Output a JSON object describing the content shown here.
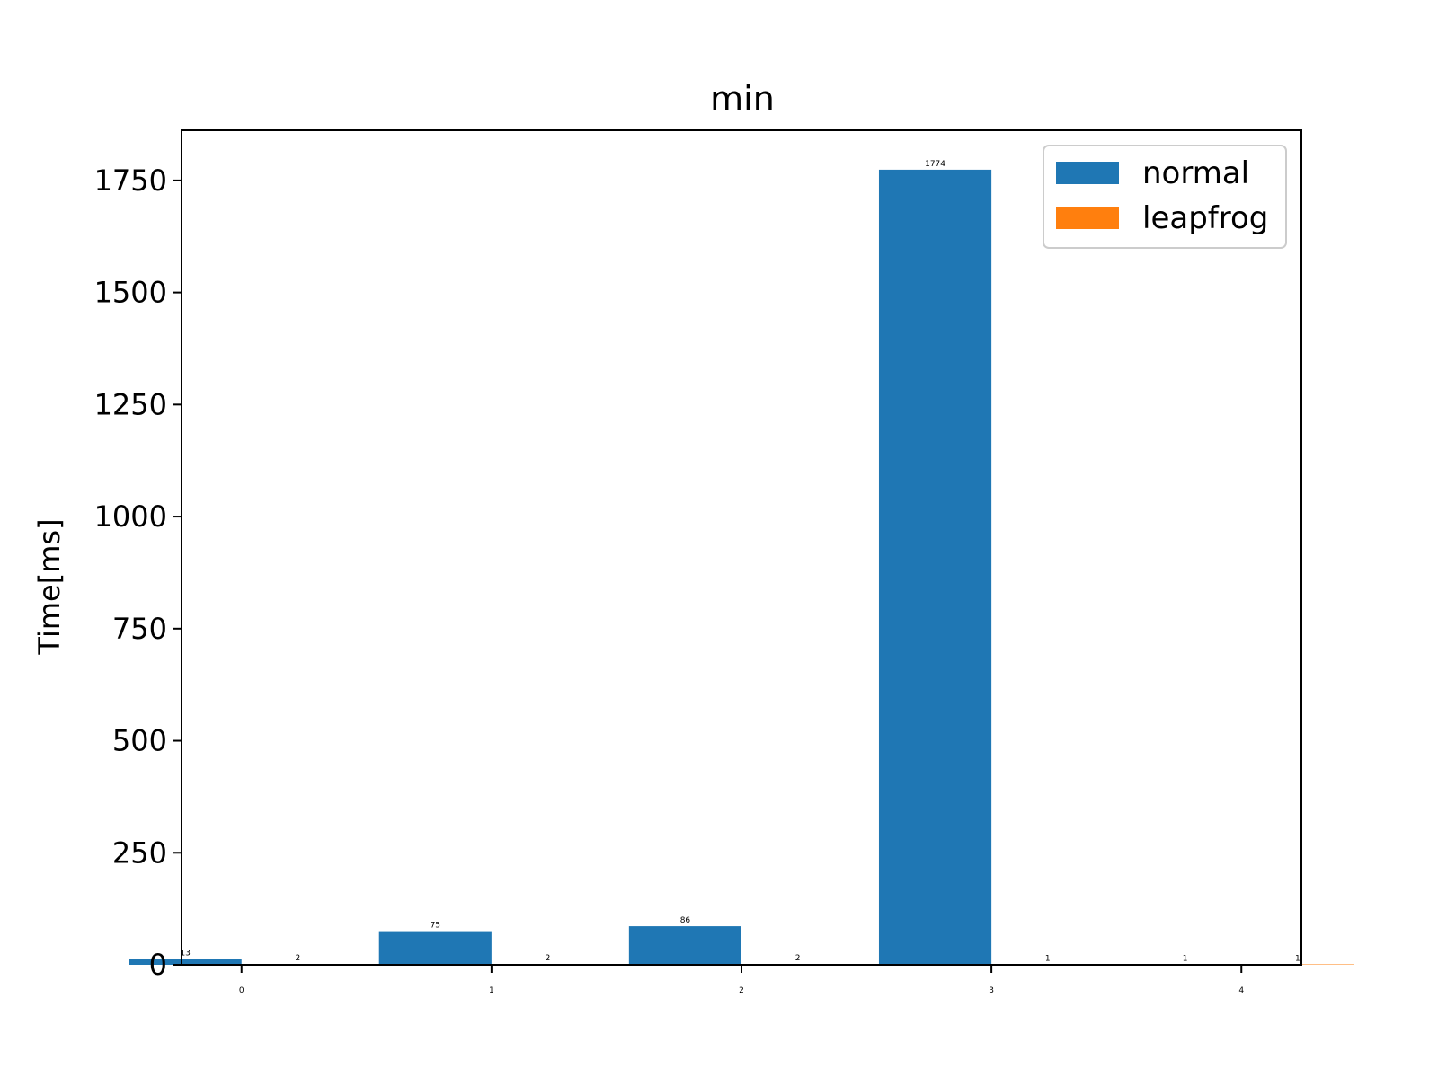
{
  "chart_data": {
    "type": "bar",
    "title": "min",
    "xlabel": "",
    "ylabel": "Time[ms]",
    "categories": [
      "0",
      "1",
      "2",
      "3",
      "4"
    ],
    "series": [
      {
        "name": "normal",
        "color": "#1f77b4",
        "values": [
          13,
          75,
          86,
          1774,
          1
        ]
      },
      {
        "name": "leapfrog",
        "color": "#ff7f0e",
        "values": [
          2,
          2,
          2,
          1,
          1
        ]
      }
    ],
    "ylim": [
      0,
      1862
    ],
    "yticks": [
      0,
      250,
      500,
      750,
      1000,
      1250,
      1500,
      1750
    ],
    "legend": "top-right",
    "grid": false
  }
}
